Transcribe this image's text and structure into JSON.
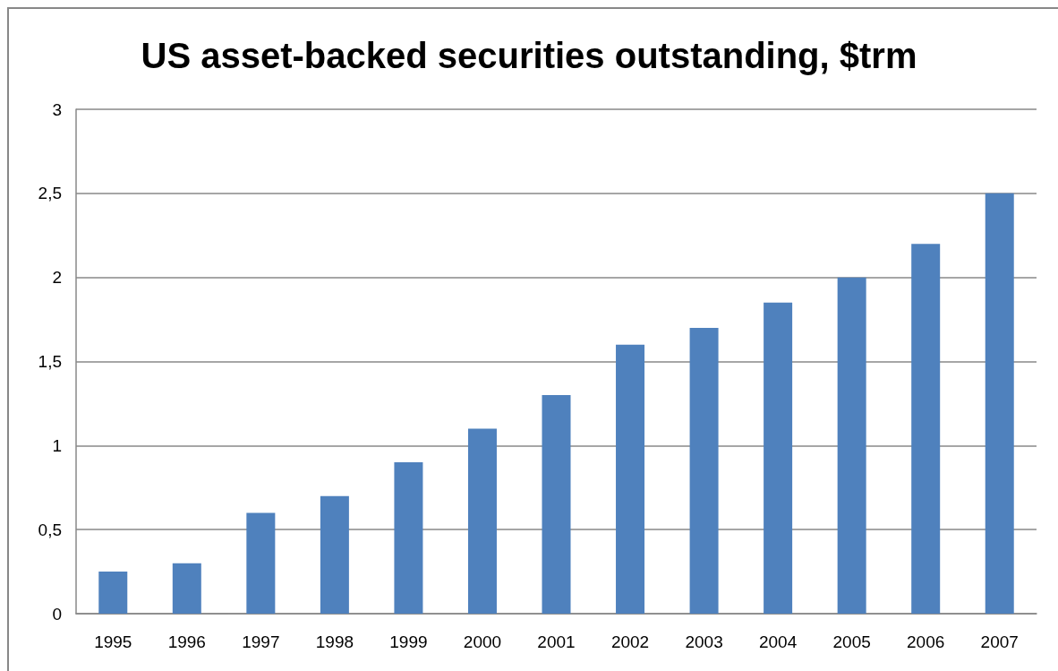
{
  "chart_data": {
    "type": "bar",
    "title": "US asset-backed securities outstanding, $trm",
    "categories": [
      "1995",
      "1996",
      "1997",
      "1998",
      "1999",
      "2000",
      "2001",
      "2002",
      "2003",
      "2004",
      "2005",
      "2006",
      "2007"
    ],
    "values": [
      0.25,
      0.3,
      0.6,
      0.7,
      0.9,
      1.1,
      1.3,
      1.6,
      1.7,
      1.85,
      2.0,
      2.2,
      2.5
    ],
    "color": "#4f81bd",
    "ylim": [
      0,
      3
    ],
    "yticks": [
      0,
      {
        "value": 0.5,
        "label": "0,5"
      },
      1,
      {
        "value": 1.5,
        "label": "1,5"
      },
      2,
      {
        "value": 2.5,
        "label": "2,5"
      },
      3
    ],
    "grid": "y"
  }
}
